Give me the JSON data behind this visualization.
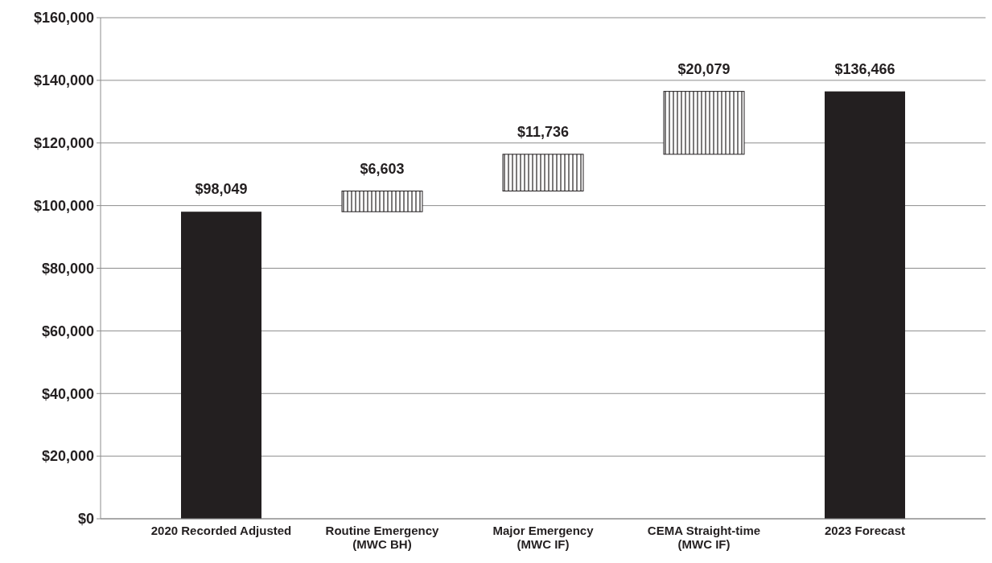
{
  "chart_data": {
    "type": "bar",
    "categories": [
      "2020 Recorded Adjusted",
      "Routine Emergency\n(MWC BH)",
      "Major Emergency\n(MWC IF)",
      "CEMA Straight-time\n(MWC IF)",
      "2023 Forecast"
    ],
    "values": [
      98049,
      6603,
      11736,
      20079,
      136466
    ],
    "base": [
      0,
      98049,
      104652,
      116388,
      0
    ],
    "colors": [
      "#231f20",
      "#231f20",
      "#231f20",
      "#231f20",
      "#231f20"
    ],
    "value_labels": [
      "$98,049",
      "$6,603",
      "$11,736",
      "$20,079",
      "$136,466"
    ],
    "ylim": [
      0,
      160000
    ],
    "yticks": [
      {
        "value": 0,
        "label": "$0"
      },
      {
        "value": 20000,
        "label": "$20,000"
      },
      {
        "value": 40000,
        "label": "$40,000"
      },
      {
        "value": 60000,
        "label": "$60,000"
      },
      {
        "value": 80000,
        "label": "$80,000"
      },
      {
        "value": 100000,
        "label": "$100,000"
      },
      {
        "value": 120000,
        "label": "$120,000"
      },
      {
        "value": 140000,
        "label": "$140,000"
      },
      {
        "value": 160000,
        "label": "$160,000"
      }
    ],
    "grid": "y"
  }
}
